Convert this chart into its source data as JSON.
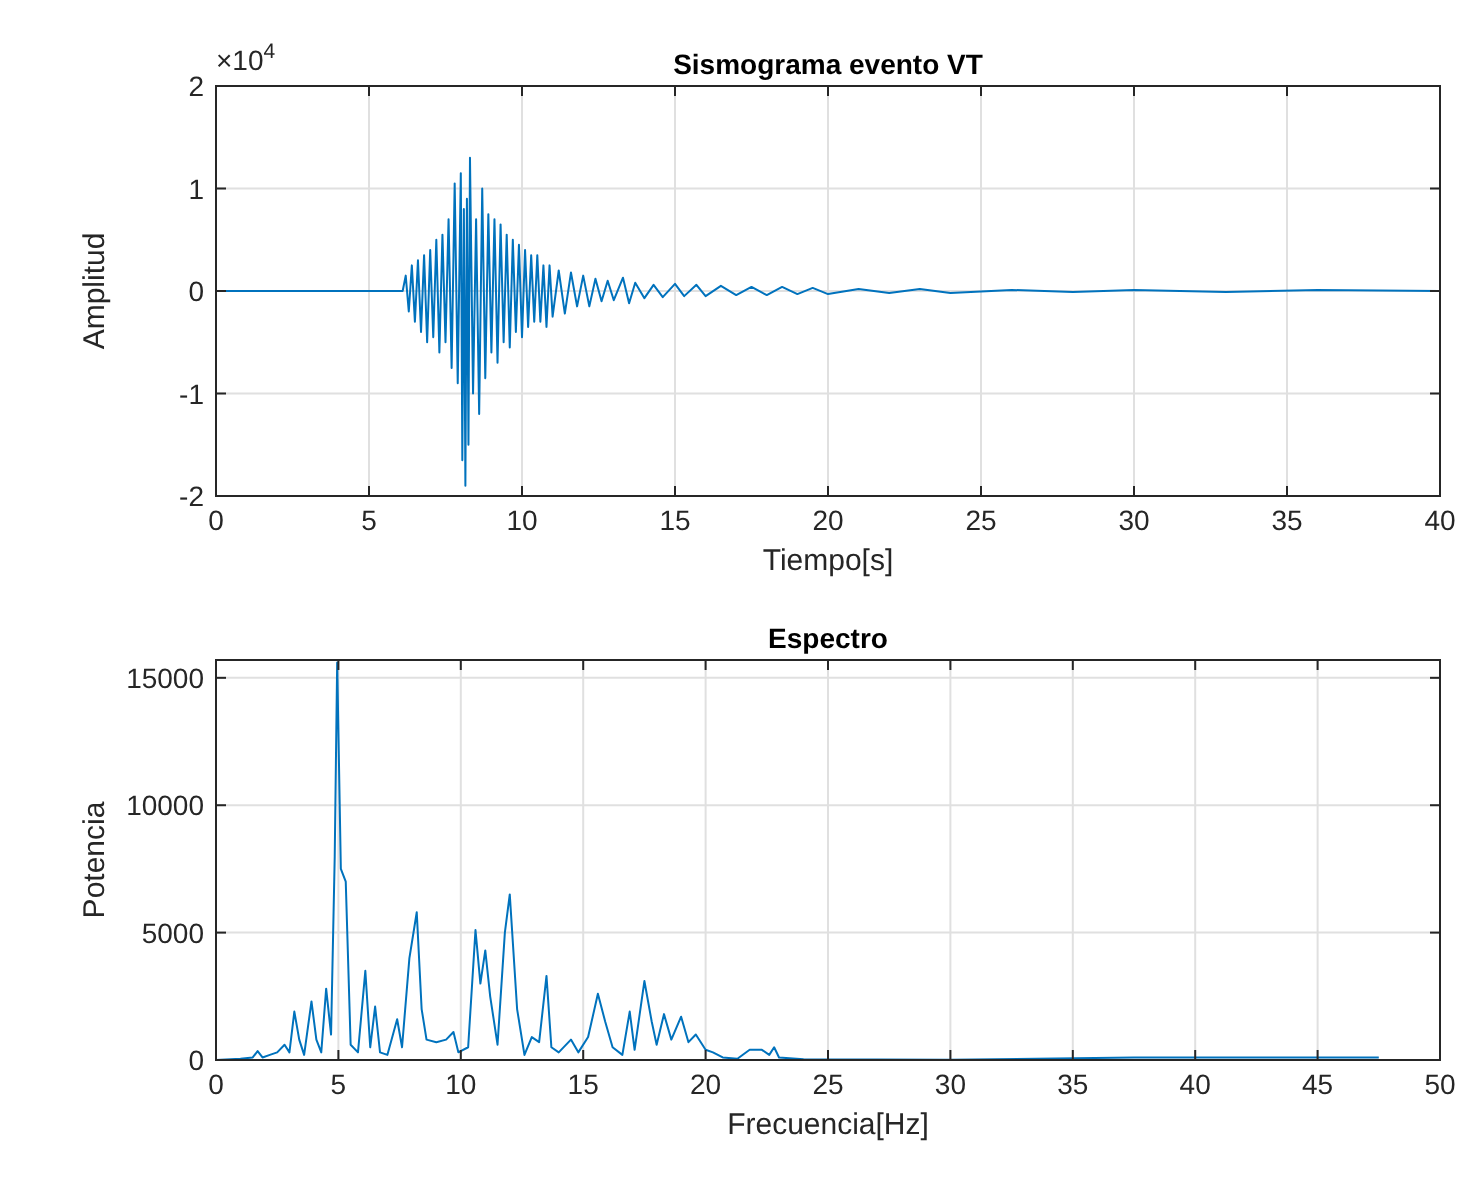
{
  "chart_data": [
    {
      "type": "line",
      "title": "Sismograma evento VT",
      "xlabel": "Tiempo[s]",
      "ylabel": "Amplitud",
      "annotations": [
        "×10$^{4}$"
      ],
      "xlim": [
        0,
        40
      ],
      "xticks": [
        0,
        5,
        10,
        15,
        20,
        25,
        30,
        35,
        40
      ],
      "ylim": [
        -2,
        2
      ],
      "yticks": [
        -2,
        -1,
        0,
        1,
        2
      ],
      "grid": true,
      "series": [
        {
          "color": "#0072bd",
          "x": [
            0,
            6.1,
            6.2,
            6.3,
            6.4,
            6.5,
            6.6,
            6.7,
            6.8,
            6.9,
            7.0,
            7.1,
            7.2,
            7.3,
            7.4,
            7.5,
            7.6,
            7.7,
            7.8,
            7.9,
            8.0,
            8.05,
            8.1,
            8.15,
            8.2,
            8.25,
            8.3,
            8.4,
            8.5,
            8.6,
            8.7,
            8.8,
            8.9,
            9.0,
            9.1,
            9.2,
            9.3,
            9.4,
            9.5,
            9.6,
            9.7,
            9.8,
            9.9,
            10.0,
            10.1,
            10.2,
            10.3,
            10.4,
            10.5,
            10.6,
            10.7,
            10.8,
            10.9,
            11.0,
            11.2,
            11.4,
            11.6,
            11.8,
            12.0,
            12.2,
            12.4,
            12.6,
            12.8,
            13.0,
            13.3,
            13.5,
            13.7,
            14.0,
            14.3,
            14.6,
            15.0,
            15.3,
            15.7,
            16.0,
            16.5,
            17.0,
            17.5,
            18.0,
            18.5,
            19.0,
            19.5,
            20.0,
            21,
            22,
            23,
            24,
            26,
            28,
            30,
            33,
            36,
            40
          ],
          "values": [
            0,
            0,
            0.15,
            -0.2,
            0.25,
            -0.3,
            0.3,
            -0.4,
            0.35,
            -0.5,
            0.4,
            -0.45,
            0.5,
            -0.6,
            0.55,
            -0.5,
            0.7,
            -0.75,
            1.05,
            -0.9,
            1.15,
            -1.65,
            0.8,
            -1.9,
            0.9,
            -1.5,
            1.3,
            -1.0,
            0.7,
            -1.2,
            1.0,
            -0.85,
            0.75,
            -0.6,
            0.7,
            -0.7,
            0.65,
            -0.5,
            0.55,
            -0.55,
            0.5,
            -0.4,
            0.45,
            -0.45,
            0.4,
            -0.35,
            0.35,
            -0.3,
            0.35,
            -0.3,
            0.25,
            -0.35,
            0.25,
            -0.25,
            0.2,
            -0.22,
            0.18,
            -0.15,
            0.15,
            -0.15,
            0.12,
            -0.1,
            0.1,
            -0.09,
            0.13,
            -0.12,
            0.08,
            -0.07,
            0.06,
            -0.06,
            0.07,
            -0.05,
            0.06,
            -0.05,
            0.05,
            -0.04,
            0.04,
            -0.04,
            0.04,
            -0.03,
            0.03,
            -0.03,
            0.02,
            -0.02,
            0.02,
            -0.02,
            0.01,
            -0.01,
            0.01,
            -0.01,
            0.01,
            0
          ]
        }
      ]
    },
    {
      "type": "line",
      "title": "Espectro",
      "xlabel": "Frecuencia[Hz]",
      "ylabel": "Potencia",
      "xlim": [
        0,
        50
      ],
      "xticks": [
        0,
        5,
        10,
        15,
        20,
        25,
        30,
        35,
        40,
        45,
        50
      ],
      "ylim": [
        0,
        15700
      ],
      "yticks": [
        0,
        5000,
        10000,
        15000
      ],
      "grid": true,
      "series": [
        {
          "color": "#0072bd",
          "x": [
            0,
            1,
            1.5,
            1.7,
            1.9,
            2.2,
            2.5,
            2.8,
            3.0,
            3.2,
            3.4,
            3.6,
            3.9,
            4.1,
            4.3,
            4.5,
            4.7,
            4.85,
            4.95,
            5.1,
            5.3,
            5.5,
            5.8,
            6.1,
            6.3,
            6.5,
            6.7,
            7.0,
            7.4,
            7.6,
            7.9,
            8.2,
            8.4,
            8.6,
            9.0,
            9.4,
            9.7,
            9.9,
            10.3,
            10.6,
            10.8,
            11.0,
            11.2,
            11.5,
            11.8,
            12.0,
            12.3,
            12.6,
            12.9,
            13.2,
            13.5,
            13.7,
            14.0,
            14.5,
            14.8,
            15.2,
            15.6,
            15.9,
            16.2,
            16.6,
            16.9,
            17.1,
            17.5,
            17.8,
            18.0,
            18.3,
            18.6,
            19.0,
            19.3,
            19.6,
            20.0,
            20.3,
            20.7,
            21.3,
            21.8,
            22.3,
            22.6,
            22.8,
            23.0,
            24,
            30,
            37.5,
            47.5
          ],
          "values": [
            0,
            50,
            100,
            350,
            100,
            200,
            300,
            600,
            300,
            1900,
            800,
            200,
            2300,
            800,
            300,
            2800,
            1000,
            8000,
            15600,
            7500,
            7000,
            600,
            300,
            3500,
            500,
            2100,
            300,
            200,
            1600,
            500,
            4000,
            5800,
            2000,
            800,
            700,
            800,
            1100,
            300,
            500,
            5100,
            3000,
            4300,
            2500,
            600,
            5000,
            6500,
            2000,
            200,
            900,
            700,
            3300,
            500,
            300,
            800,
            300,
            900,
            2600,
            1500,
            500,
            200,
            1900,
            400,
            3100,
            1500,
            600,
            1800,
            800,
            1700,
            700,
            1000,
            400,
            300,
            100,
            50,
            400,
            400,
            200,
            500,
            100,
            30,
            10,
            100,
            100
          ]
        }
      ]
    }
  ]
}
